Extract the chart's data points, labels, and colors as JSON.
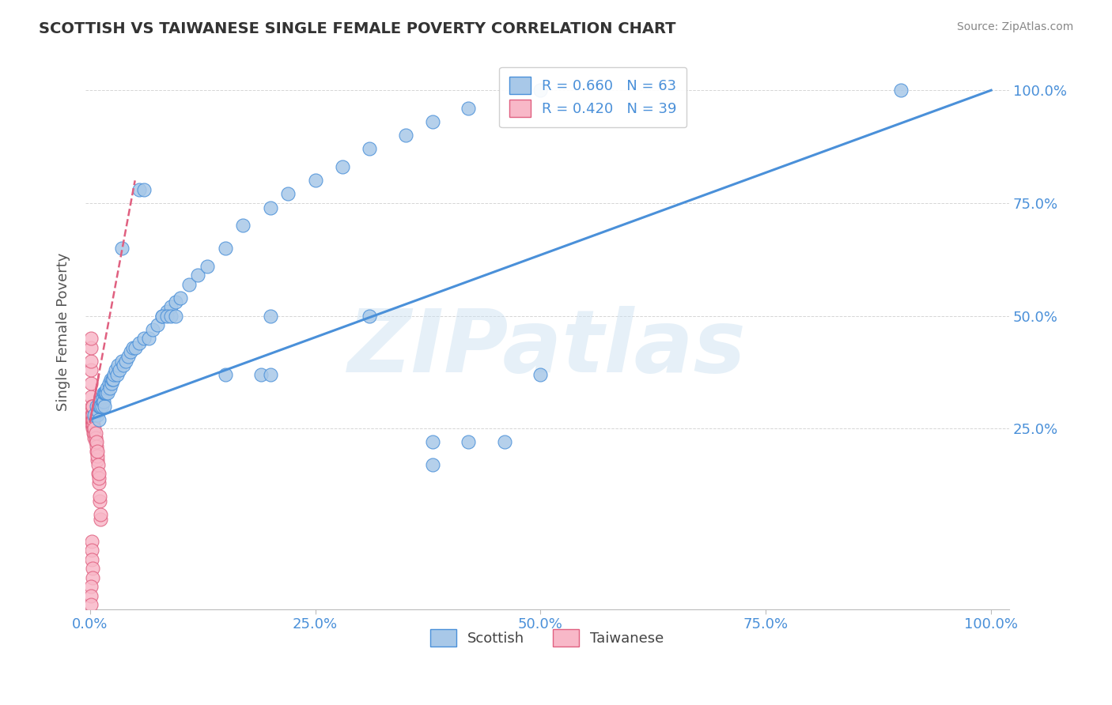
{
  "title": "SCOTTISH VS TAIWANESE SINGLE FEMALE POVERTY CORRELATION CHART",
  "source": "Source: ZipAtlas.com",
  "ylabel": "Single Female Poverty",
  "x_tick_vals": [
    0,
    0.25,
    0.5,
    0.75,
    1.0
  ],
  "x_tick_labels": [
    "0.0%",
    "25.0%",
    "50.0%",
    "75.0%",
    "100.0%"
  ],
  "y_tick_vals": [
    0.25,
    0.5,
    0.75,
    1.0
  ],
  "y_tick_labels": [
    "25.0%",
    "50.0%",
    "75.0%",
    "100.0%"
  ],
  "watermark": "ZIPatlas",
  "R_scottish": 0.66,
  "N_scottish": 63,
  "R_taiwanese": 0.42,
  "N_taiwanese": 39,
  "scottish_line_color": "#4a90d9",
  "taiwanese_line_color": "#e06080",
  "scottish_marker_face": "#a8c8e8",
  "scottish_marker_edge": "#4a90d9",
  "taiwanese_marker_face": "#f8b8c8",
  "taiwanese_marker_edge": "#e06080",
  "background_color": "#ffffff",
  "grid_color": "#cccccc",
  "title_color": "#333333",
  "axis_tick_color": "#4a90d9",
  "scottish_x": [
    0.005,
    0.007,
    0.008,
    0.009,
    0.01,
    0.01,
    0.011,
    0.011,
    0.012,
    0.013,
    0.014,
    0.014,
    0.015,
    0.015,
    0.016,
    0.016,
    0.017,
    0.018,
    0.019,
    0.02,
    0.021,
    0.022,
    0.023,
    0.024,
    0.025,
    0.026,
    0.027,
    0.028,
    0.03,
    0.031,
    0.033,
    0.035,
    0.037,
    0.04,
    0.042,
    0.045,
    0.048,
    0.05,
    0.055,
    0.06,
    0.065,
    0.07,
    0.075,
    0.08,
    0.085,
    0.09,
    0.095,
    0.1,
    0.11,
    0.12,
    0.13,
    0.15,
    0.17,
    0.2,
    0.22,
    0.25,
    0.28,
    0.31,
    0.35,
    0.38,
    0.42,
    0.5,
    0.9
  ],
  "scottish_y": [
    0.28,
    0.3,
    0.28,
    0.29,
    0.27,
    0.3,
    0.31,
    0.3,
    0.3,
    0.3,
    0.31,
    0.32,
    0.31,
    0.33,
    0.3,
    0.33,
    0.33,
    0.33,
    0.34,
    0.33,
    0.35,
    0.34,
    0.36,
    0.35,
    0.36,
    0.36,
    0.37,
    0.38,
    0.37,
    0.39,
    0.38,
    0.4,
    0.39,
    0.4,
    0.41,
    0.42,
    0.43,
    0.43,
    0.44,
    0.45,
    0.45,
    0.47,
    0.48,
    0.5,
    0.51,
    0.52,
    0.53,
    0.54,
    0.57,
    0.59,
    0.61,
    0.65,
    0.7,
    0.74,
    0.77,
    0.8,
    0.83,
    0.87,
    0.9,
    0.93,
    0.96,
    1.0,
    1.0
  ],
  "scottish_y_outliers_add": [
    [
      0.035,
      0.65
    ],
    [
      0.055,
      0.78
    ],
    [
      0.06,
      0.78
    ],
    [
      0.08,
      0.5
    ],
    [
      0.085,
      0.5
    ],
    [
      0.09,
      0.5
    ],
    [
      0.095,
      0.5
    ],
    [
      0.15,
      0.37
    ],
    [
      0.19,
      0.37
    ],
    [
      0.2,
      0.37
    ],
    [
      0.2,
      0.5
    ],
    [
      0.31,
      0.5
    ],
    [
      0.38,
      0.22
    ],
    [
      0.42,
      0.22
    ],
    [
      0.46,
      0.22
    ],
    [
      0.38,
      0.17
    ],
    [
      0.5,
      0.37
    ]
  ],
  "taiwanese_x": [
    0.001,
    0.001,
    0.001,
    0.001,
    0.002,
    0.002,
    0.002,
    0.002,
    0.002,
    0.003,
    0.003,
    0.003,
    0.003,
    0.003,
    0.004,
    0.004,
    0.004,
    0.004,
    0.005,
    0.005,
    0.005,
    0.006,
    0.006,
    0.006,
    0.007,
    0.007,
    0.007,
    0.008,
    0.008,
    0.008,
    0.009,
    0.009,
    0.01,
    0.01,
    0.01,
    0.011,
    0.011,
    0.012,
    0.012
  ],
  "taiwanese_y": [
    0.27,
    0.27,
    0.28,
    0.29,
    0.26,
    0.27,
    0.27,
    0.28,
    0.28,
    0.25,
    0.26,
    0.27,
    0.27,
    0.28,
    0.24,
    0.25,
    0.26,
    0.27,
    0.23,
    0.24,
    0.25,
    0.22,
    0.23,
    0.24,
    0.2,
    0.21,
    0.22,
    0.18,
    0.19,
    0.2,
    0.15,
    0.17,
    0.13,
    0.14,
    0.15,
    0.09,
    0.1,
    0.05,
    0.06
  ],
  "taiwanese_y_extra": [
    [
      0.001,
      0.32
    ],
    [
      0.001,
      0.35
    ],
    [
      0.001,
      0.38
    ],
    [
      0.002,
      0.3
    ],
    [
      0.003,
      0.3
    ],
    [
      0.001,
      0.4
    ],
    [
      0.001,
      0.43
    ],
    [
      0.001,
      0.45
    ],
    [
      0.002,
      0.0
    ],
    [
      0.002,
      -0.02
    ],
    [
      0.002,
      -0.04
    ],
    [
      0.003,
      -0.06
    ],
    [
      0.003,
      -0.08
    ],
    [
      0.001,
      -0.1
    ],
    [
      0.001,
      -0.12
    ],
    [
      0.001,
      -0.14
    ]
  ],
  "scot_line_x0": 0.0,
  "scot_line_y0": 0.27,
  "scot_line_x1": 1.0,
  "scot_line_y1": 1.0,
  "tai_line_x0": 0.0,
  "tai_line_y0": 0.265,
  "tai_line_x1": 0.05,
  "tai_line_y1": 0.8,
  "xlim": [
    -0.005,
    1.02
  ],
  "ylim": [
    -0.15,
    1.08
  ]
}
